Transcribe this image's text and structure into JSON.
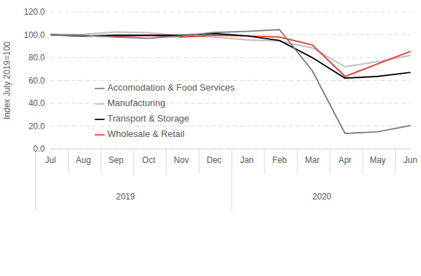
{
  "chart_data": {
    "type": "line",
    "y_label": "Index July 2019=100",
    "categories": [
      "Jul",
      "Aug",
      "Sep",
      "Oct",
      "Nov",
      "Dec",
      "Jan",
      "Feb",
      "Mar",
      "Apr",
      "May",
      "Jun"
    ],
    "x_groups": [
      {
        "label": "2019",
        "count": 6
      },
      {
        "label": "2020",
        "count": 6
      }
    ],
    "ylim": [
      0,
      120
    ],
    "yticks": [
      {
        "value": 0,
        "label": "0.0"
      },
      {
        "value": 20,
        "label": "20.0"
      },
      {
        "value": 40,
        "label": "40.0"
      },
      {
        "value": 60,
        "label": "60.0"
      },
      {
        "value": 80,
        "label": "80.0"
      },
      {
        "value": 100,
        "label": "100.0"
      },
      {
        "value": 120,
        "label": "120.0"
      }
    ],
    "grid": true,
    "legend": "left",
    "series": [
      {
        "name": "Manufacturing",
        "color": "#bfbfbf",
        "values": [
          100,
          100.5,
          102.5,
          101.8,
          99,
          98,
          95.5,
          94.5,
          88.5,
          72,
          76.5,
          82
        ]
      },
      {
        "name": "Wholesale & Retail",
        "color": "#e8412c",
        "values": [
          100,
          99,
          98.5,
          99.5,
          98,
          99.5,
          99,
          98,
          91,
          63.5,
          74.5,
          85.5
        ]
      },
      {
        "name": "Transport & Storage",
        "color": "#000000",
        "values": [
          100,
          99,
          99.5,
          99.5,
          99.5,
          101,
          99,
          95,
          80,
          62,
          63.5,
          67
        ]
      },
      {
        "name": "Accomodation & Food Services",
        "color": "#7f7f7f",
        "values": [
          100,
          99.5,
          98,
          97,
          99,
          102,
          103,
          104.5,
          68.5,
          13.5,
          15,
          20.5
        ]
      }
    ]
  }
}
